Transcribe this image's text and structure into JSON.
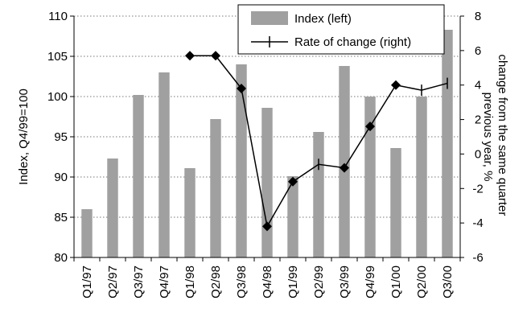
{
  "chart_data": {
    "type": "bar",
    "categories": [
      "Q1/97",
      "Q2/97",
      "Q3/97",
      "Q4/97",
      "Q1/98",
      "Q2/98",
      "Q3/98",
      "Q4/98",
      "Q1/99",
      "Q2/99",
      "Q3/99",
      "Q4/99",
      "Q1/00",
      "Q2/00",
      "Q3/00"
    ],
    "series": [
      {
        "name": "Index (left)",
        "type": "bar",
        "axis": "left",
        "color": "#a0a0a0",
        "values": [
          86.0,
          92.3,
          100.2,
          103.0,
          91.1,
          97.2,
          104.0,
          98.6,
          90.1,
          95.6,
          103.8,
          100.0,
          93.6,
          100.0,
          108.3
        ]
      },
      {
        "name": "Rate of change (right)",
        "type": "line",
        "axis": "right",
        "color": "#000000",
        "values": [
          null,
          null,
          null,
          null,
          5.7,
          5.7,
          3.8,
          -4.2,
          -1.6,
          -0.6,
          -0.8,
          1.6,
          4.0,
          3.7,
          4.1
        ],
        "markers": [
          null,
          null,
          null,
          null,
          "diamond",
          "diamond",
          "diamond",
          "diamond",
          "diamond",
          "tick",
          "diamond",
          "diamond",
          "diamond",
          "tick",
          "tick"
        ]
      }
    ],
    "ylabel": "Index, Q4/99=100",
    "y2label": [
      "change from the same quarter",
      "previous year, %"
    ],
    "ylim": [
      80,
      110
    ],
    "y2lim": [
      -6,
      8
    ],
    "yticks": [
      "80",
      "85",
      "90",
      "95",
      "100",
      "105",
      "110"
    ],
    "y2ticks": [
      "-6",
      "-4",
      "-2",
      "0",
      "2",
      "4",
      "6",
      "8"
    ],
    "grid": "horizontal-dotted",
    "legend": "top-right"
  }
}
